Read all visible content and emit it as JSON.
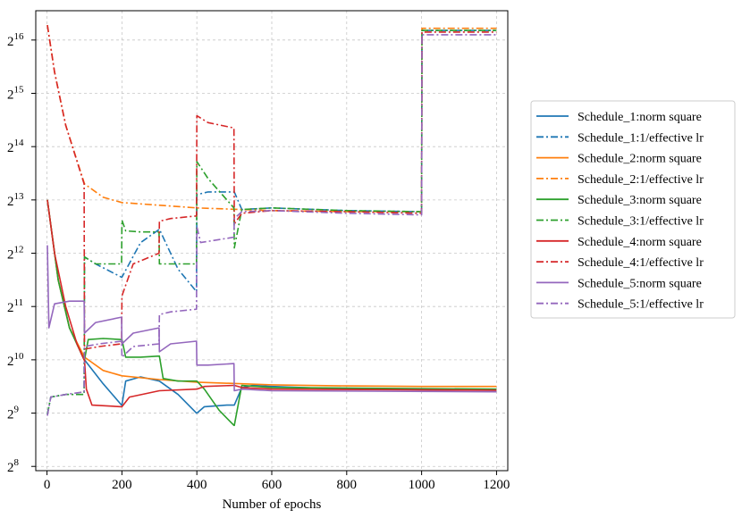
{
  "chart_data": {
    "type": "line",
    "title": "",
    "xlabel": "Number of epochs",
    "ylabel": "",
    "yscale": "log2",
    "xlim": [
      -30,
      1230
    ],
    "ylim_log2": [
      7.92,
      16.55
    ],
    "xticks": [
      0,
      200,
      400,
      600,
      800,
      1000,
      1200
    ],
    "xtick_labels": [
      "0",
      "200",
      "400",
      "600",
      "800",
      "1000",
      "1200"
    ],
    "yticks_log2": [
      8,
      9,
      10,
      11,
      12,
      13,
      14,
      15,
      16
    ],
    "ytick_base": "2",
    "ytick_exponents": [
      "8",
      "9",
      "10",
      "11",
      "12",
      "13",
      "14",
      "15",
      "16"
    ],
    "grid": true,
    "legend_position": "outside-right",
    "series": [
      {
        "name": "Schedule_1:norm square",
        "color": "#1f77b4",
        "style": "solid",
        "points": [
          [
            1,
            13.0
          ],
          [
            30,
            11.5
          ],
          [
            60,
            10.6
          ],
          [
            100,
            10.0
          ],
          [
            150,
            9.55
          ],
          [
            199,
            9.15
          ],
          [
            200,
            9.15
          ],
          [
            210,
            9.6
          ],
          [
            250,
            9.68
          ],
          [
            300,
            9.6
          ],
          [
            350,
            9.35
          ],
          [
            399,
            9.0
          ],
          [
            400,
            9.0
          ],
          [
            420,
            9.12
          ],
          [
            480,
            9.15
          ],
          [
            499,
            9.15
          ],
          [
            500,
            9.15
          ],
          [
            520,
            9.48
          ],
          [
            550,
            9.52
          ],
          [
            600,
            9.5
          ],
          [
            800,
            9.45
          ],
          [
            1200,
            9.43
          ]
        ]
      },
      {
        "name": "Schedule_1:1/effective lr",
        "color": "#1f77b4",
        "style": "dashdot",
        "points": [
          [
            1,
            8.98
          ],
          [
            10,
            9.3
          ],
          [
            50,
            9.35
          ],
          [
            99,
            9.35
          ],
          [
            100,
            11.93
          ],
          [
            130,
            11.8
          ],
          [
            199,
            11.55
          ],
          [
            200,
            11.55
          ],
          [
            250,
            12.2
          ],
          [
            300,
            12.45
          ],
          [
            350,
            11.7
          ],
          [
            399,
            11.28
          ],
          [
            400,
            13.1
          ],
          [
            430,
            13.15
          ],
          [
            499,
            13.15
          ],
          [
            500,
            13.15
          ],
          [
            520,
            12.82
          ],
          [
            600,
            12.85
          ],
          [
            800,
            12.8
          ],
          [
            1000,
            12.78
          ],
          [
            1001,
            16.18
          ],
          [
            1200,
            16.18
          ]
        ]
      },
      {
        "name": "Schedule_2:norm square",
        "color": "#ff7f0e",
        "style": "solid",
        "points": [
          [
            1,
            13.0
          ],
          [
            30,
            11.5
          ],
          [
            60,
            10.6
          ],
          [
            100,
            10.05
          ],
          [
            150,
            9.8
          ],
          [
            200,
            9.7
          ],
          [
            300,
            9.63
          ],
          [
            400,
            9.58
          ],
          [
            600,
            9.53
          ],
          [
            800,
            9.51
          ],
          [
            1000,
            9.5
          ],
          [
            1200,
            9.5
          ]
        ]
      },
      {
        "name": "Schedule_2:1/effective lr",
        "color": "#ff7f0e",
        "style": "dashdot",
        "points": [
          [
            1,
            16.28
          ],
          [
            20,
            15.4
          ],
          [
            50,
            14.4
          ],
          [
            100,
            13.3
          ],
          [
            150,
            13.05
          ],
          [
            200,
            12.95
          ],
          [
            300,
            12.9
          ],
          [
            400,
            12.85
          ],
          [
            600,
            12.8
          ],
          [
            800,
            12.78
          ],
          [
            1000,
            12.78
          ],
          [
            1001,
            16.22
          ],
          [
            1200,
            16.22
          ]
        ]
      },
      {
        "name": "Schedule_3:norm square",
        "color": "#2ca02c",
        "style": "solid",
        "points": [
          [
            1,
            13.0
          ],
          [
            30,
            11.5
          ],
          [
            60,
            10.6
          ],
          [
            99,
            10.0
          ],
          [
            100,
            10.0
          ],
          [
            110,
            10.38
          ],
          [
            150,
            10.4
          ],
          [
            199,
            10.38
          ],
          [
            200,
            10.38
          ],
          [
            210,
            10.05
          ],
          [
            250,
            10.05
          ],
          [
            299,
            10.07
          ],
          [
            300,
            10.07
          ],
          [
            310,
            9.65
          ],
          [
            350,
            9.6
          ],
          [
            399,
            9.6
          ],
          [
            400,
            9.6
          ],
          [
            420,
            9.45
          ],
          [
            460,
            9.05
          ],
          [
            499,
            8.77
          ],
          [
            500,
            8.77
          ],
          [
            520,
            9.52
          ],
          [
            600,
            9.48
          ],
          [
            1200,
            9.45
          ]
        ]
      },
      {
        "name": "Schedule_3:1/effective lr",
        "color": "#2ca02c",
        "style": "dashdot",
        "points": [
          [
            1,
            8.98
          ],
          [
            10,
            9.3
          ],
          [
            50,
            9.35
          ],
          [
            99,
            9.35
          ],
          [
            100,
            11.93
          ],
          [
            130,
            11.8
          ],
          [
            199,
            11.8
          ],
          [
            200,
            12.62
          ],
          [
            210,
            12.42
          ],
          [
            250,
            12.4
          ],
          [
            299,
            12.4
          ],
          [
            300,
            11.8
          ],
          [
            399,
            11.8
          ],
          [
            400,
            13.72
          ],
          [
            430,
            13.4
          ],
          [
            499,
            12.85
          ],
          [
            500,
            12.1
          ],
          [
            520,
            12.82
          ],
          [
            600,
            12.85
          ],
          [
            800,
            12.8
          ],
          [
            1000,
            12.78
          ],
          [
            1001,
            16.18
          ],
          [
            1200,
            16.18
          ]
        ]
      },
      {
        "name": "Schedule_4:norm square",
        "color": "#d62728",
        "style": "solid",
        "points": [
          [
            1,
            13.0
          ],
          [
            20,
            12.0
          ],
          [
            50,
            11.0
          ],
          [
            80,
            10.3
          ],
          [
            99,
            10.0
          ],
          [
            100,
            10.0
          ],
          [
            105,
            9.45
          ],
          [
            120,
            9.15
          ],
          [
            199,
            9.12
          ],
          [
            200,
            9.12
          ],
          [
            220,
            9.3
          ],
          [
            300,
            9.42
          ],
          [
            399,
            9.45
          ],
          [
            400,
            9.45
          ],
          [
            420,
            9.5
          ],
          [
            499,
            9.52
          ],
          [
            500,
            9.52
          ],
          [
            520,
            9.48
          ],
          [
            600,
            9.45
          ],
          [
            1200,
            9.43
          ]
        ]
      },
      {
        "name": "Schedule_4:1/effective lr",
        "color": "#d62728",
        "style": "dashdot",
        "points": [
          [
            1,
            16.28
          ],
          [
            20,
            15.4
          ],
          [
            50,
            14.4
          ],
          [
            99,
            13.3
          ],
          [
            100,
            10.2
          ],
          [
            140,
            10.25
          ],
          [
            199,
            10.3
          ],
          [
            200,
            11.2
          ],
          [
            230,
            11.8
          ],
          [
            299,
            12.0
          ],
          [
            300,
            12.6
          ],
          [
            330,
            12.65
          ],
          [
            399,
            12.7
          ],
          [
            400,
            14.58
          ],
          [
            430,
            14.45
          ],
          [
            499,
            14.35
          ],
          [
            500,
            12.55
          ],
          [
            520,
            12.75
          ],
          [
            600,
            12.8
          ],
          [
            800,
            12.78
          ],
          [
            1000,
            12.75
          ],
          [
            1001,
            16.15
          ],
          [
            1200,
            16.15
          ]
        ]
      },
      {
        "name": "Schedule_5:norm square",
        "color": "#9467bd",
        "style": "solid",
        "points": [
          [
            1,
            12.15
          ],
          [
            5,
            10.6
          ],
          [
            20,
            11.05
          ],
          [
            60,
            11.1
          ],
          [
            99,
            11.1
          ],
          [
            100,
            10.5
          ],
          [
            130,
            10.7
          ],
          [
            199,
            10.8
          ],
          [
            200,
            10.3
          ],
          [
            230,
            10.5
          ],
          [
            299,
            10.6
          ],
          [
            300,
            10.15
          ],
          [
            330,
            10.3
          ],
          [
            399,
            10.35
          ],
          [
            400,
            9.9
          ],
          [
            430,
            9.9
          ],
          [
            499,
            9.93
          ],
          [
            500,
            9.42
          ],
          [
            520,
            9.45
          ],
          [
            600,
            9.42
          ],
          [
            1200,
            9.4
          ]
        ]
      },
      {
        "name": "Schedule_5:1/effective lr",
        "color": "#9467bd",
        "style": "dashdot",
        "points": [
          [
            1,
            8.95
          ],
          [
            10,
            9.3
          ],
          [
            50,
            9.35
          ],
          [
            99,
            9.4
          ],
          [
            100,
            10.25
          ],
          [
            140,
            10.3
          ],
          [
            199,
            10.35
          ],
          [
            200,
            10.05
          ],
          [
            230,
            10.25
          ],
          [
            299,
            10.3
          ],
          [
            300,
            10.85
          ],
          [
            330,
            10.9
          ],
          [
            399,
            10.95
          ],
          [
            400,
            12.5
          ],
          [
            410,
            12.2
          ],
          [
            499,
            12.3
          ],
          [
            500,
            12.65
          ],
          [
            520,
            12.78
          ],
          [
            600,
            12.8
          ],
          [
            800,
            12.75
          ],
          [
            1000,
            12.72
          ],
          [
            1001,
            16.1
          ],
          [
            1200,
            16.1
          ]
        ]
      }
    ]
  }
}
